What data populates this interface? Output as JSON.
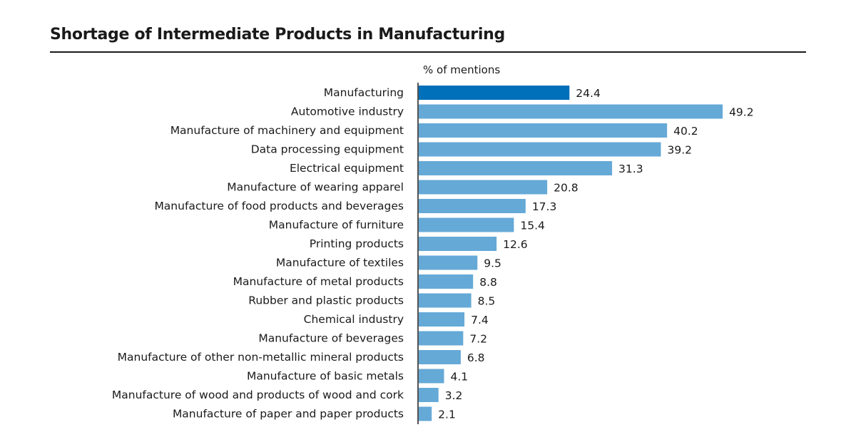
{
  "chart_data": {
    "type": "bar",
    "orientation": "horizontal",
    "title": "Shortage of Intermediate Products in Manufacturing",
    "unit_label": "% of mentions",
    "categories": [
      "Manufacturing",
      "Automotive industry",
      "Manufacture of machinery and equipment",
      "Data processing equipment",
      "Electrical equipment",
      "Manufacture of wearing apparel",
      "Manufacture of food products and beverages",
      "Manufacture of furniture",
      "Printing products",
      "Manufacture of textiles",
      "Manufacture of metal products",
      "Rubber and plastic products",
      "Chemical industry",
      "Manufacture of beverages",
      "Manufacture of other non-metallic mineral products",
      "Manufacture of basic metals",
      "Manufacture of wood and products of wood and cork",
      "Manufacture of paper and paper products"
    ],
    "values": [
      24.4,
      49.2,
      40.2,
      39.2,
      31.3,
      20.8,
      17.3,
      15.4,
      12.6,
      9.5,
      8.8,
      8.5,
      7.4,
      7.2,
      6.8,
      4.1,
      3.2,
      2.1
    ],
    "value_labels": [
      "24.4",
      "49.2",
      "40.2",
      "39.2",
      "31.3",
      "20.8",
      "17.3",
      "15.4",
      "12.6",
      "9.5",
      "8.8",
      "8.5",
      "7.4",
      "7.2",
      "6.8",
      "4.1",
      "3.2",
      "2.1"
    ],
    "xlim": [
      0,
      50
    ],
    "grid": false,
    "colors": {
      "highlight": "#0070BA",
      "bar": "#65A9D7",
      "axis": "#1a1a1a"
    }
  }
}
